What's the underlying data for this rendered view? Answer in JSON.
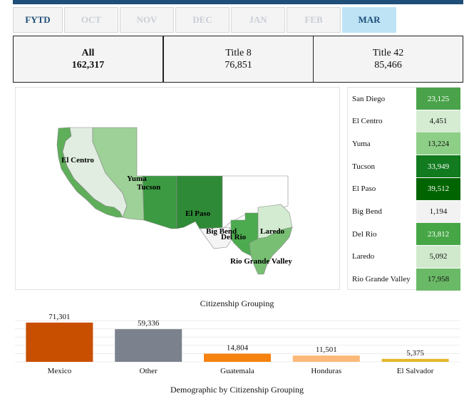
{
  "tabs": [
    {
      "label": "FYTD",
      "state": "default"
    },
    {
      "label": "OCT",
      "state": "disabled"
    },
    {
      "label": "NOV",
      "state": "disabled"
    },
    {
      "label": "DEC",
      "state": "disabled"
    },
    {
      "label": "JAN",
      "state": "disabled"
    },
    {
      "label": "FEB",
      "state": "disabled"
    },
    {
      "label": "MAR",
      "state": "active"
    }
  ],
  "summary": [
    {
      "label": "All",
      "value": "162,317"
    },
    {
      "label": "Title 8",
      "value": "76,851"
    },
    {
      "label": "Title 42",
      "value": "85,466"
    }
  ],
  "map_labels": [
    "El Centro",
    "Yuma",
    "Tucson",
    "El Paso",
    "Big Bend",
    "Del Rio",
    "Laredo",
    "Rio Grande Valley"
  ],
  "stations": [
    {
      "name": "San Diego",
      "value": "23,125",
      "color": "#4aa34a",
      "text_color": "#ffffff"
    },
    {
      "name": "El Centro",
      "value": "4,451",
      "color": "#d5ecd2",
      "text_color": "#111111"
    },
    {
      "name": "Yuma",
      "value": "13,224",
      "color": "#8ecf87",
      "text_color": "#111111"
    },
    {
      "name": "Tucson",
      "value": "33,949",
      "color": "#127a1f",
      "text_color": "#ffffff"
    },
    {
      "name": "El Paso",
      "value": "39,512",
      "color": "#006400",
      "text_color": "#ffffff"
    },
    {
      "name": "Big Bend",
      "value": "1,194",
      "color": "#f2f2f2",
      "text_color": "#111111"
    },
    {
      "name": "Del Rio",
      "value": "23,812",
      "color": "#46a646",
      "text_color": "#ffffff"
    },
    {
      "name": "Laredo",
      "value": "5,092",
      "color": "#d0e9cc",
      "text_color": "#111111"
    },
    {
      "name": "Rio Grande Valley",
      "value": "17,958",
      "color": "#6ab966",
      "text_color": "#111111"
    }
  ],
  "chart_data": {
    "type": "bar",
    "title": "Citizenship Grouping",
    "categories": [
      "Mexico",
      "Other",
      "Guatemala",
      "Honduras",
      "El Salvador"
    ],
    "values": [
      71301,
      59336,
      14804,
      11501,
      5375
    ],
    "value_labels": [
      "71,301",
      "59,336",
      "14,804",
      "11,501",
      "5,375"
    ],
    "colors": [
      "#c94f00",
      "#7b828d",
      "#f6820f",
      "#fbb97a",
      "#e3b72d"
    ],
    "ylim": [
      0,
      75000
    ],
    "grid": true
  },
  "footer_title": "Demographic by Citizenship Grouping"
}
